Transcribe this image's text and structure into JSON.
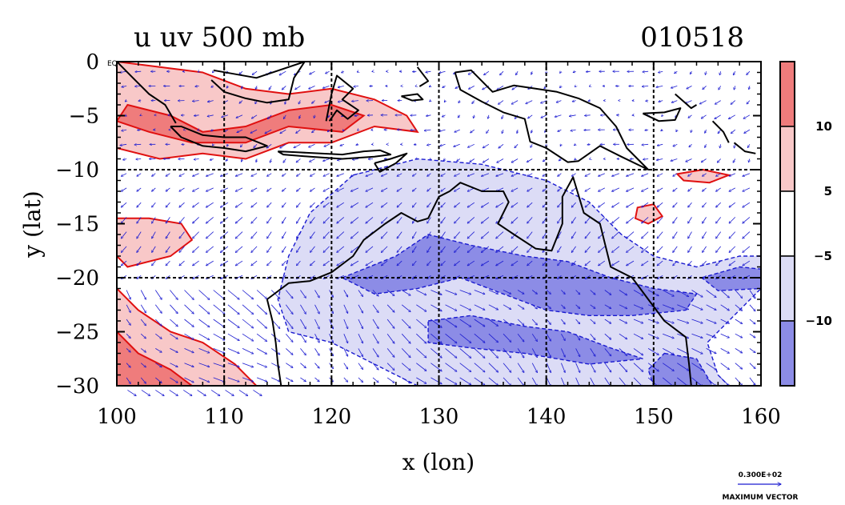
{
  "chart_data": {
    "type": "contour+vector",
    "title_left": "u uv 500 mb",
    "title_right": "010518",
    "xlabel": "x (lon)",
    "ylabel": "y (lat)",
    "xlim": [
      100,
      160
    ],
    "ylim": [
      -30,
      0
    ],
    "x_ticks": [
      100,
      110,
      120,
      130,
      140,
      150,
      160
    ],
    "y_ticks": [
      0,
      -5,
      -10,
      -15,
      -20,
      -25,
      -30
    ],
    "y_tick_labels": [
      "0",
      "−5",
      "−10",
      "−15",
      "−20",
      "−25",
      "−30"
    ],
    "x_gridlines": [
      110,
      120,
      130,
      140,
      150
    ],
    "y_gridlines": [
      -10,
      -20
    ],
    "equator_label": "EQ",
    "colorbar": {
      "levels": [
        10,
        5,
        -5,
        -10
      ],
      "labels": [
        "10",
        "5",
        "−5",
        "−10"
      ],
      "colors": [
        "#ef7c7c",
        "#f8c8c8",
        "#ffffff",
        "#dcdcf6",
        "#8c8ce6"
      ]
    },
    "contour_colors": {
      "positive": "#e01010",
      "negative": "#1a1ad0",
      "coast": "#000000",
      "vector": "#1a1ad0"
    },
    "vector_scale": {
      "label": "0.300E+02",
      "caption": "MAXIMUM  VECTOR",
      "magnitude": 30
    },
    "positive_regions": [
      {
        "level": 5,
        "polygon": [
          [
            100,
            0
          ],
          [
            104,
            -0.5
          ],
          [
            108,
            -1
          ],
          [
            112,
            -2.5
          ],
          [
            116,
            -3
          ],
          [
            120,
            -2.5
          ],
          [
            124,
            -3.5
          ],
          [
            127,
            -5
          ],
          [
            128,
            -6.5
          ],
          [
            124,
            -6
          ],
          [
            120,
            -7.5
          ],
          [
            116,
            -7.5
          ],
          [
            112,
            -9
          ],
          [
            108,
            -8.5
          ],
          [
            104,
            -9
          ],
          [
            100,
            -8
          ]
        ]
      },
      {
        "level": 10,
        "polygon": [
          [
            101,
            -4
          ],
          [
            105,
            -5
          ],
          [
            108,
            -6.5
          ],
          [
            112,
            -6
          ],
          [
            116,
            -4.5
          ],
          [
            120,
            -4
          ],
          [
            123,
            -5
          ],
          [
            121,
            -6.5
          ],
          [
            116,
            -6
          ],
          [
            112,
            -7.5
          ],
          [
            107,
            -7.5
          ],
          [
            103,
            -6.5
          ],
          [
            100,
            -5.5
          ]
        ]
      },
      {
        "level": 5,
        "polygon": [
          [
            100,
            -14.5
          ],
          [
            103,
            -14.5
          ],
          [
            106,
            -15
          ],
          [
            107,
            -16.5
          ],
          [
            105,
            -18
          ],
          [
            101,
            -19
          ],
          [
            100,
            -18
          ]
        ]
      },
      {
        "level": 5,
        "polygon": [
          [
            100,
            -21
          ],
          [
            102,
            -23
          ],
          [
            105,
            -25
          ],
          [
            108,
            -26
          ],
          [
            111,
            -28
          ],
          [
            113,
            -30
          ],
          [
            100,
            -30
          ]
        ]
      },
      {
        "level": 10,
        "polygon": [
          [
            100,
            -25
          ],
          [
            102,
            -27
          ],
          [
            105,
            -28.5
          ],
          [
            107,
            -30
          ],
          [
            100,
            -30
          ]
        ]
      },
      {
        "level": 5,
        "polygon": [
          [
            148.5,
            -13.5
          ],
          [
            150,
            -13.2
          ],
          [
            150.8,
            -14.3
          ],
          [
            149.5,
            -15
          ],
          [
            148.3,
            -14.5
          ]
        ]
      },
      {
        "level": 5,
        "polygon": [
          [
            152.2,
            -10.4
          ],
          [
            154.6,
            -10
          ],
          [
            157,
            -10.5
          ],
          [
            155.2,
            -11.2
          ],
          [
            152.8,
            -11
          ]
        ]
      }
    ],
    "negative_regions": [
      {
        "level": -5,
        "polygon": [
          [
            122,
            -10.5
          ],
          [
            128,
            -9
          ],
          [
            134,
            -9.5
          ],
          [
            140,
            -11
          ],
          [
            144,
            -13
          ],
          [
            147,
            -16
          ],
          [
            150,
            -18
          ],
          [
            154,
            -19
          ],
          [
            158,
            -18
          ],
          [
            160,
            -18
          ],
          [
            160,
            -21
          ],
          [
            158,
            -23
          ],
          [
            155,
            -26
          ],
          [
            156,
            -29
          ],
          [
            157,
            -30
          ],
          [
            128,
            -30
          ],
          [
            124,
            -28
          ],
          [
            120,
            -26
          ],
          [
            116,
            -25
          ],
          [
            115,
            -22
          ],
          [
            116,
            -18
          ],
          [
            118,
            -14
          ]
        ]
      },
      {
        "level": -10,
        "polygon": [
          [
            121,
            -20
          ],
          [
            126,
            -18
          ],
          [
            129,
            -16
          ],
          [
            133,
            -17
          ],
          [
            138,
            -18
          ],
          [
            142,
            -18.5
          ],
          [
            146,
            -20
          ],
          [
            150,
            -21
          ],
          [
            154,
            -21.5
          ],
          [
            153,
            -23
          ],
          [
            148,
            -23.5
          ],
          [
            144,
            -23.5
          ],
          [
            140,
            -23
          ],
          [
            136,
            -21.5
          ],
          [
            132,
            -20
          ],
          [
            128,
            -21
          ],
          [
            124,
            -21.5
          ]
        ]
      },
      {
        "level": -10,
        "polygon": [
          [
            129,
            -24
          ],
          [
            133,
            -23.5
          ],
          [
            138,
            -24.5
          ],
          [
            142,
            -25
          ],
          [
            146,
            -26.5
          ],
          [
            149,
            -27.5
          ],
          [
            144,
            -28
          ],
          [
            138,
            -27
          ],
          [
            133,
            -26.5
          ],
          [
            129,
            -26
          ]
        ]
      },
      {
        "level": -10,
        "polygon": [
          [
            151,
            -27
          ],
          [
            154,
            -27.5
          ],
          [
            155.5,
            -30
          ],
          [
            150,
            -30
          ],
          [
            149.5,
            -28.5
          ]
        ]
      },
      {
        "level": -10,
        "polygon": [
          [
            154.5,
            -20
          ],
          [
            158,
            -19
          ],
          [
            160,
            -19.2
          ],
          [
            160,
            -21
          ],
          [
            156,
            -21.2
          ]
        ]
      }
    ],
    "coastlines": [
      [
        [
          114,
          -22
        ],
        [
          114.5,
          -24
        ],
        [
          114.8,
          -26
        ],
        [
          115,
          -28
        ],
        [
          115.3,
          -30
        ]
      ],
      [
        [
          114,
          -22
        ],
        [
          116,
          -20.5
        ],
        [
          118,
          -20.3
        ],
        [
          120,
          -19.5
        ],
        [
          122,
          -18
        ],
        [
          123,
          -16.5
        ],
        [
          125,
          -15
        ],
        [
          126.5,
          -14
        ],
        [
          128,
          -14.8
        ],
        [
          129,
          -14.5
        ],
        [
          130,
          -12.5
        ],
        [
          131,
          -12
        ],
        [
          132,
          -11.2
        ],
        [
          134,
          -12
        ],
        [
          136,
          -12
        ],
        [
          136.5,
          -13
        ],
        [
          135.5,
          -15
        ],
        [
          137,
          -16
        ],
        [
          139,
          -17.3
        ],
        [
          140.5,
          -17.5
        ],
        [
          141.5,
          -15
        ],
        [
          141.5,
          -12.5
        ],
        [
          142.5,
          -10.7
        ],
        [
          143.5,
          -14
        ],
        [
          145,
          -15
        ],
        [
          145.5,
          -17
        ],
        [
          146,
          -19
        ],
        [
          148,
          -20
        ],
        [
          149.5,
          -22
        ],
        [
          151,
          -24
        ],
        [
          153,
          -25.5
        ],
        [
          153.3,
          -28
        ],
        [
          153.5,
          -30
        ]
      ],
      [
        [
          105,
          -6
        ],
        [
          106,
          -6
        ],
        [
          108,
          -6.8
        ],
        [
          110,
          -7
        ],
        [
          112,
          -7
        ],
        [
          114,
          -7.8
        ],
        [
          112,
          -8.3
        ],
        [
          110,
          -8
        ],
        [
          108,
          -7.8
        ],
        [
          106,
          -7
        ],
        [
          105,
          -6
        ]
      ],
      [
        [
          115,
          -8.3
        ],
        [
          117,
          -8.4
        ],
        [
          119,
          -8.5
        ],
        [
          121,
          -8.6
        ],
        [
          123,
          -8.3
        ],
        [
          124.5,
          -8.2
        ],
        [
          125.5,
          -8.6
        ],
        [
          124,
          -8.8
        ],
        [
          121,
          -9
        ],
        [
          118,
          -8.8
        ],
        [
          115.5,
          -8.6
        ],
        [
          115,
          -8.3
        ]
      ],
      [
        [
          124,
          -9.4
        ],
        [
          125.5,
          -9
        ],
        [
          127,
          -8.5
        ],
        [
          126,
          -9.4
        ],
        [
          124.5,
          -10.2
        ],
        [
          124,
          -9.4
        ]
      ],
      [
        [
          108.8,
          -1.7
        ],
        [
          110,
          -2.8
        ],
        [
          112,
          -3.4
        ],
        [
          114,
          -3.8
        ],
        [
          116,
          -3.5
        ],
        [
          116.5,
          -1.5
        ],
        [
          117.5,
          0
        ],
        [
          113,
          -1.5
        ],
        [
          109,
          -0.8
        ]
      ],
      [
        [
          119.5,
          -5.5
        ],
        [
          120,
          -3
        ],
        [
          120.5,
          -1.3
        ],
        [
          122,
          -2.5
        ],
        [
          121,
          -3.5
        ],
        [
          122.5,
          -4.5
        ],
        [
          121.5,
          -5.3
        ],
        [
          120.5,
          -4.5
        ],
        [
          119.8,
          -5.5
        ]
      ],
      [
        [
          100,
          0
        ],
        [
          101.5,
          -1.5
        ],
        [
          103,
          -3
        ],
        [
          104.5,
          -4
        ],
        [
          105.5,
          -5.7
        ]
      ],
      [
        [
          131.5,
          -1
        ],
        [
          133,
          -0.8
        ],
        [
          135,
          -2.8
        ],
        [
          137,
          -2.2
        ],
        [
          139,
          -2.5
        ],
        [
          141,
          -2.8
        ],
        [
          143,
          -3.4
        ],
        [
          145,
          -4.3
        ],
        [
          146.5,
          -6
        ],
        [
          147.5,
          -8
        ],
        [
          149.5,
          -10
        ],
        [
          147,
          -8.8
        ],
        [
          145,
          -7.8
        ],
        [
          143,
          -9.2
        ],
        [
          142,
          -9.3
        ],
        [
          140,
          -8
        ],
        [
          138.5,
          -7.4
        ],
        [
          138,
          -5.3
        ],
        [
          136,
          -4.7
        ],
        [
          134,
          -3.7
        ],
        [
          132,
          -2.6
        ],
        [
          131.5,
          -1
        ]
      ],
      [
        [
          149,
          -4.8
        ],
        [
          150.5,
          -5.5
        ],
        [
          152,
          -5.4
        ],
        [
          152.5,
          -4.3
        ],
        [
          151,
          -4.7
        ],
        [
          149,
          -4.8
        ]
      ],
      [
        [
          152,
          -3
        ],
        [
          153.5,
          -4.3
        ],
        [
          154,
          -4
        ]
      ],
      [
        [
          155.5,
          -5.5
        ],
        [
          156.5,
          -6.5
        ],
        [
          157,
          -7.5
        ]
      ],
      [
        [
          157.5,
          -7.5
        ],
        [
          158.5,
          -8.3
        ],
        [
          159.5,
          -8.5
        ]
      ],
      [
        [
          126.5,
          -3.2
        ],
        [
          127.5,
          -3.6
        ],
        [
          128.5,
          -3.5
        ],
        [
          128,
          -3
        ],
        [
          126.5,
          -3.2
        ]
      ],
      [
        [
          128,
          -0.5
        ],
        [
          129,
          -1.8
        ],
        [
          128.2,
          -2.3
        ]
      ]
    ]
  }
}
